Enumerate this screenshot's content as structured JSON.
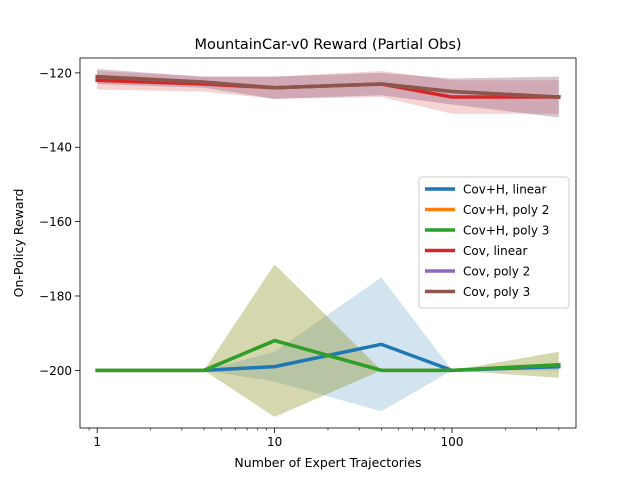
{
  "chart_data": {
    "type": "line",
    "title": "MountainCar-v0 Reward (Partial Obs)",
    "xlabel": "Number of Expert Trajectories",
    "ylabel": "On-Policy Reward",
    "xscale": "log",
    "xlim": [
      0.8,
      500
    ],
    "ylim": [
      -215.5,
      -116
    ],
    "xticks": [
      1,
      10,
      100
    ],
    "xtick_labels": [
      "1",
      "10",
      "100"
    ],
    "yticks": [
      -200,
      -180,
      -160,
      -140,
      -120
    ],
    "ytick_labels": [
      "−200",
      "−180",
      "−160",
      "−140",
      "−120"
    ],
    "x": [
      1,
      4,
      10,
      40,
      100,
      400
    ],
    "grid": false,
    "legend": "center-right",
    "series": [
      {
        "name": "Cov+H, linear",
        "color": "#1f77b4",
        "values": [
          -200,
          -200,
          -199,
          -193,
          -200,
          -199
        ],
        "lower": [
          -200,
          -200,
          -203,
          -211,
          -200,
          -200
        ],
        "upper": [
          -200,
          -200,
          -195,
          -175,
          -200,
          -198
        ]
      },
      {
        "name": "Cov+H, poly 2",
        "color": "#ff7f0e",
        "values": [
          -200,
          -200,
          -192,
          -200,
          -200,
          -198.5
        ],
        "lower": [
          -200,
          -200,
          -212.5,
          -200,
          -200,
          -202
        ],
        "upper": [
          -200,
          -200,
          -171.5,
          -200,
          -200,
          -195
        ]
      },
      {
        "name": "Cov+H, poly 3",
        "color": "#2ca02c",
        "values": [
          -200,
          -200,
          -192,
          -200,
          -200,
          -198.5
        ],
        "lower": [
          -200,
          -200,
          -212.5,
          -200,
          -200,
          -202
        ],
        "upper": [
          -200,
          -200,
          -171.5,
          -200,
          -200,
          -195
        ]
      },
      {
        "name": "Cov, linear",
        "color": "#d62728",
        "values": [
          -122,
          -123,
          -124,
          -123,
          -126.5,
          -126.5
        ],
        "lower": [
          -124.5,
          -125,
          -127,
          -126.5,
          -131,
          -131
        ],
        "upper": [
          -119.5,
          -121,
          -121,
          -119.5,
          -122,
          -122
        ]
      },
      {
        "name": "Cov, poly 2",
        "color": "#9467bd",
        "values": [
          -121,
          -122.5,
          -124,
          -123,
          -125,
          -126.5
        ],
        "lower": [
          -123,
          -124,
          -127,
          -126,
          -128.5,
          -132
        ],
        "upper": [
          -119,
          -121,
          -121,
          -120,
          -121.5,
          -121
        ]
      },
      {
        "name": "Cov, poly 3",
        "color": "#8c564b",
        "values": [
          -121,
          -122.5,
          -124,
          -123,
          -125,
          -126.5
        ],
        "lower": [
          -123,
          -124,
          -127,
          -126,
          -128.5,
          -132
        ],
        "upper": [
          -119,
          -121,
          -121,
          -120,
          -121.5,
          -121
        ]
      }
    ]
  }
}
